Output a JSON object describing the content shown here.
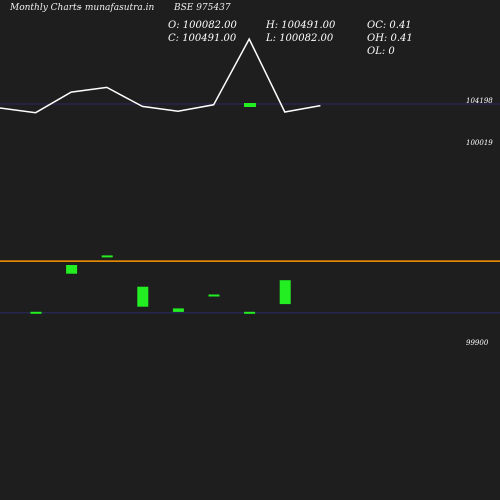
{
  "header": {
    "period": "Monthly Charts",
    "site": "- munafasutra.in",
    "symbol": "BSE 975437"
  },
  "ohlc": {
    "open": "O: 100082.00",
    "high": "H: 100491.00",
    "oc": "OC: 0.41",
    "close": "C: 100491.00",
    "low": "L: 100082.00",
    "oh": "OH: 0.41",
    "ol": "OL: 0"
  },
  "colors": {
    "background": "#1e1e1e",
    "candle": "#22ee22",
    "line": "#ffffff",
    "level_line": "#ff9900",
    "guide_line": "#2a2a66"
  },
  "chart_data": {
    "type": "candlestick+line",
    "price_labels": [
      "104198",
      "100019",
      "99900"
    ],
    "candles": [
      {
        "open": 99900,
        "close": 99902,
        "high": 99902,
        "low": 99900
      },
      {
        "open": 99990,
        "close": 100010,
        "high": 100010,
        "low": 99990
      },
      {
        "open": 100030,
        "close": 100032,
        "high": 100032,
        "low": 100030
      },
      {
        "open": 99914,
        "close": 99960,
        "high": 99960,
        "low": 99914
      },
      {
        "open": 99902,
        "close": 99910,
        "high": 99910,
        "low": 99902
      },
      {
        "open": 99940,
        "close": 99942,
        "high": 99942,
        "low": 99940
      },
      {
        "open": 99900,
        "close": 99902,
        "high": 99902,
        "low": 99900
      },
      {
        "open": 99920,
        "close": 99975,
        "high": 99975,
        "low": 99920
      }
    ],
    "line_series": [
      103700,
      103100,
      105700,
      106300,
      103900,
      103300,
      104100,
      112400,
      103200,
      104000
    ],
    "line_range": [
      98400,
      114800
    ],
    "candle_range": [
      99814,
      100275
    ],
    "levels": {
      "upper": 104198,
      "main": 100019,
      "lower": 99900
    }
  }
}
